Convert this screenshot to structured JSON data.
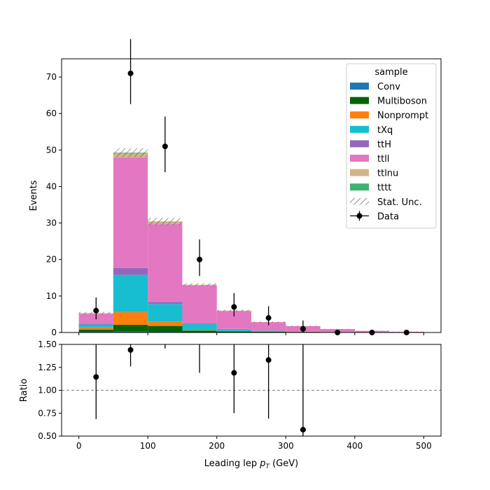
{
  "chart_data": {
    "type": "bar",
    "subtype": "stacked-histogram-with-ratio",
    "title": "",
    "xlabel": "Leading lep",
    "xlabel_symbol": "p",
    "xlabel_sub": "T",
    "xlabel_unit": "(GeV)",
    "ylabel": "Events",
    "ratio_ylabel": "Ratio",
    "xlim": [
      -25,
      525
    ],
    "ylim": [
      0,
      75
    ],
    "ratio_ylim": [
      0.5,
      1.5
    ],
    "ratio_reference": 1.0,
    "grid": false,
    "legend_position": "upper right",
    "legend_title": "sample",
    "bin_edges": [
      0,
      50,
      100,
      150,
      200,
      250,
      300,
      350,
      400,
      450,
      500
    ],
    "x_ticks": [
      "0",
      "100",
      "200",
      "300",
      "400",
      "500"
    ],
    "y_ticks": [
      "0",
      "10",
      "20",
      "30",
      "40",
      "50",
      "60",
      "70"
    ],
    "ratio_ticks": [
      "0.50",
      "0.75",
      "1.00",
      "1.25",
      "1.50"
    ],
    "series": [
      {
        "name": "Conv",
        "color": "#1f77b4",
        "values": [
          0.2,
          0.3,
          0.2,
          0.1,
          0.05,
          0.02,
          0.02,
          0.0,
          0.0,
          0.0
        ]
      },
      {
        "name": "Multiboson",
        "color": "#006400",
        "values": [
          0.6,
          1.8,
          1.6,
          0.4,
          0.25,
          0.2,
          0.15,
          0.1,
          0.05,
          0.0
        ]
      },
      {
        "name": "Nonprompt",
        "color": "#ff7f0e",
        "values": [
          0.6,
          3.5,
          1.2,
          0.1,
          0.1,
          0.05,
          0.05,
          0.0,
          0.0,
          0.0
        ]
      },
      {
        "name": "tXq",
        "color": "#17becf",
        "values": [
          0.8,
          10.2,
          4.8,
          1.7,
          0.5,
          0.2,
          0.05,
          0.05,
          0.0,
          0.0
        ]
      },
      {
        "name": "ttH",
        "color": "#9467bd",
        "values": [
          0.1,
          1.9,
          0.6,
          0.1,
          0.1,
          0.05,
          0.05,
          0.0,
          0.0,
          0.0
        ]
      },
      {
        "name": "ttll",
        "color": "#e377c2",
        "values": [
          2.8,
          30.3,
          21.3,
          10.5,
          4.9,
          2.3,
          1.4,
          0.8,
          0.4,
          0.2
        ]
      },
      {
        "name": "ttlnu",
        "color": "#d2b48c",
        "values": [
          0.2,
          1.2,
          0.6,
          0.2,
          0.1,
          0.05,
          0.05,
          0.0,
          0.0,
          0.0
        ]
      },
      {
        "name": "tttt",
        "color": "#3cb371",
        "values": [
          0.0,
          0.1,
          0.1,
          0.0,
          0.0,
          0.0,
          0.0,
          0.0,
          0.0,
          0.0
        ]
      }
    ],
    "stat_unc": [
      0.35,
      1.2,
      1.0,
      0.4,
      0.2,
      0.15,
      0.1,
      0.05,
      0.05,
      0.05
    ],
    "stat_unc_label": "Stat. Unc.",
    "data": {
      "name": "Data",
      "x": [
        25,
        75,
        125,
        175,
        225,
        275,
        325,
        375,
        425,
        475
      ],
      "y": [
        6,
        71,
        51,
        20,
        7,
        4,
        1,
        0,
        0,
        0
      ],
      "yerr_low": [
        2.4,
        8.4,
        7.1,
        4.5,
        2.6,
        2.0,
        1.0,
        0,
        0,
        0
      ],
      "yerr_high": [
        3.6,
        9.4,
        8.2,
        5.5,
        3.8,
        3.2,
        2.3,
        0,
        0,
        0
      ]
    },
    "ratio": {
      "x": [
        25,
        75,
        225,
        275,
        325
      ],
      "y": [
        1.145,
        1.44,
        1.19,
        1.33,
        0.57
      ],
      "yerr_low": [
        0.46,
        0.18,
        0.44,
        0.64,
        0.57
      ],
      "yerr_high": [
        0.7,
        0.2,
        0.62,
        0.9,
        1.3
      ],
      "offscale_bars": [
        {
          "x": 125,
          "ylo": 1.455,
          "yhi": 1.5
        },
        {
          "x": 175,
          "ylo": 1.19,
          "yhi": 1.5
        }
      ]
    }
  }
}
